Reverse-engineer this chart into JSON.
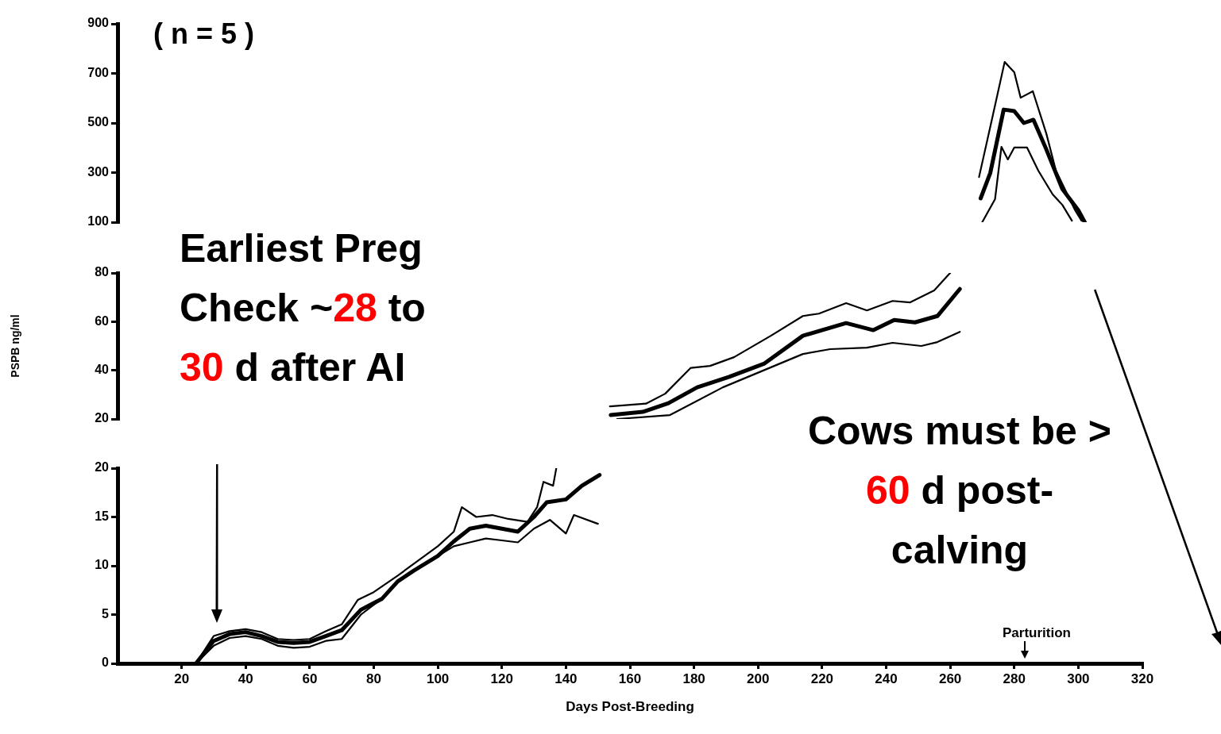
{
  "chart_data": [
    {
      "type": "line",
      "annotations": [
        "( n = 5 )"
      ],
      "xlim": [
        0,
        320
      ],
      "xticks": [
        20,
        40,
        60,
        80,
        100,
        120,
        140,
        160,
        180,
        200,
        220,
        240,
        260,
        280,
        300,
        320
      ],
      "ylim": [
        100,
        900
      ],
      "yticks": [
        100,
        300,
        500,
        700,
        900
      ],
      "tick_labels": "y",
      "grid": false,
      "legend": false,
      "marker": "none",
      "series": [
        {
          "color": "#000000",
          "x": [
            269,
            273,
            277,
            280,
            282,
            285.8,
            290,
            293,
            299,
            301
          ],
          "values": [
            282,
            513,
            746,
            705,
            602,
            628,
            458,
            308,
            148,
            106
          ]
        },
        {
          "color": "#000000",
          "x": [
            269.5,
            272.5,
            276.7,
            280,
            283,
            286,
            290,
            295,
            300,
            302
          ],
          "values": [
            196,
            298,
            554,
            548,
            500,
            513,
            394,
            234,
            148,
            100
          ]
        },
        {
          "color": "#000000",
          "x": [
            270,
            274,
            276,
            278,
            280,
            284,
            287.5,
            292,
            295,
            298
          ],
          "values": [
            100,
            193,
            404,
            353,
            401,
            401,
            308,
            212,
            170,
            106
          ]
        }
      ]
    },
    {
      "type": "line",
      "ylabel": "PSPB ng/ml",
      "xlim": [
        0,
        320
      ],
      "xticks": [
        20,
        40,
        60,
        80,
        100,
        120,
        140,
        160,
        180,
        200,
        220,
        240,
        260,
        280,
        300,
        320
      ],
      "ylim": [
        20,
        80
      ],
      "yticks": [
        20,
        40,
        60,
        80
      ],
      "tick_labels": "y",
      "grid": false,
      "legend": false,
      "marker": "none",
      "series": [
        {
          "color": "#000000",
          "x": [
            153.75,
            165,
            171,
            179,
            185,
            192.5,
            204,
            214,
            219,
            227.5,
            234,
            242,
            247.5,
            255,
            259,
            260
          ],
          "values": [
            25.2,
            26.3,
            30.4,
            41,
            41.8,
            45.4,
            54.2,
            62.3,
            63.3,
            67.6,
            64.6,
            68.5,
            67.9,
            72.8,
            78.6,
            80
          ]
        },
        {
          "color": "#000000",
          "x": [
            154,
            164,
            172,
            181,
            191,
            202,
            214,
            227.5,
            236,
            242.5,
            249,
            256,
            263
          ],
          "values": [
            21.6,
            22.9,
            26.5,
            33,
            37.3,
            42.8,
            54.2,
            59.4,
            56.5,
            60.7,
            59.7,
            62.3,
            73.4
          ]
        },
        {
          "color": "#000000",
          "x": [
            156,
            172.5,
            189,
            214,
            222.5,
            234,
            242,
            251,
            256,
            263
          ],
          "values": [
            20,
            21.6,
            33,
            46.7,
            48.7,
            49.3,
            51.3,
            50,
            51.6,
            55.8
          ]
        }
      ]
    },
    {
      "type": "line",
      "xlabel": "Days Post-Breeding",
      "annotations": [
        "Earliest Preg Check ~28 to 30 d after AI",
        "Cows must be > 60 d post-calving",
        "Parturition"
      ],
      "xlim": [
        0,
        320
      ],
      "xticks": [
        20,
        40,
        60,
        80,
        100,
        120,
        140,
        160,
        180,
        200,
        220,
        240,
        260,
        280,
        300,
        320
      ],
      "ylim": [
        0,
        20
      ],
      "yticks": [
        0,
        5,
        10,
        15,
        20
      ],
      "grid": false,
      "legend": false,
      "marker": "none",
      "series": [
        {
          "color": "#000000",
          "x": [
            24.5,
            30,
            35,
            40,
            45,
            50,
            55,
            60,
            65,
            70,
            75,
            80,
            87.5,
            95,
            100,
            105,
            107.5,
            112,
            117,
            122,
            128,
            131,
            133,
            136,
            137
          ],
          "values": [
            0,
            2.8,
            3.3,
            3.5,
            3.2,
            2.5,
            2.4,
            2.5,
            3.3,
            4.0,
            6.5,
            7.3,
            9.0,
            10.8,
            12.0,
            13.5,
            16.0,
            15.0,
            15.2,
            14.8,
            14.5,
            16.0,
            18.6,
            18.2,
            20
          ]
        },
        {
          "color": "#000000",
          "x": [
            24.5,
            30,
            35,
            40,
            45,
            50,
            55,
            60,
            65,
            70,
            76,
            82.5,
            87.5,
            92.5,
            100,
            105,
            110,
            115,
            120,
            125,
            130,
            134,
            140,
            145,
            150.5
          ],
          "values": [
            0,
            2.3,
            3.0,
            3.2,
            2.8,
            2.2,
            2.1,
            2.2,
            2.8,
            3.4,
            5.5,
            6.6,
            8.4,
            9.5,
            11.0,
            12.5,
            13.8,
            14.1,
            13.8,
            13.5,
            15,
            16.5,
            16.8,
            18.2,
            19.3
          ]
        },
        {
          "color": "#000000",
          "x": [
            24.5,
            30,
            35,
            40,
            45,
            50,
            55,
            60,
            65,
            70,
            76,
            82,
            88,
            95,
            100,
            105,
            110,
            115,
            120,
            125,
            130,
            135,
            140,
            142.5,
            150
          ],
          "values": [
            0,
            1.8,
            2.6,
            2.8,
            2.5,
            1.8,
            1.6,
            1.7,
            2.3,
            2.5,
            5.0,
            6.5,
            8.5,
            10.0,
            11.0,
            12.0,
            12.4,
            12.8,
            12.6,
            12.4,
            13.8,
            14.7,
            13.3,
            15.2,
            14.3
          ]
        }
      ]
    }
  ]
}
